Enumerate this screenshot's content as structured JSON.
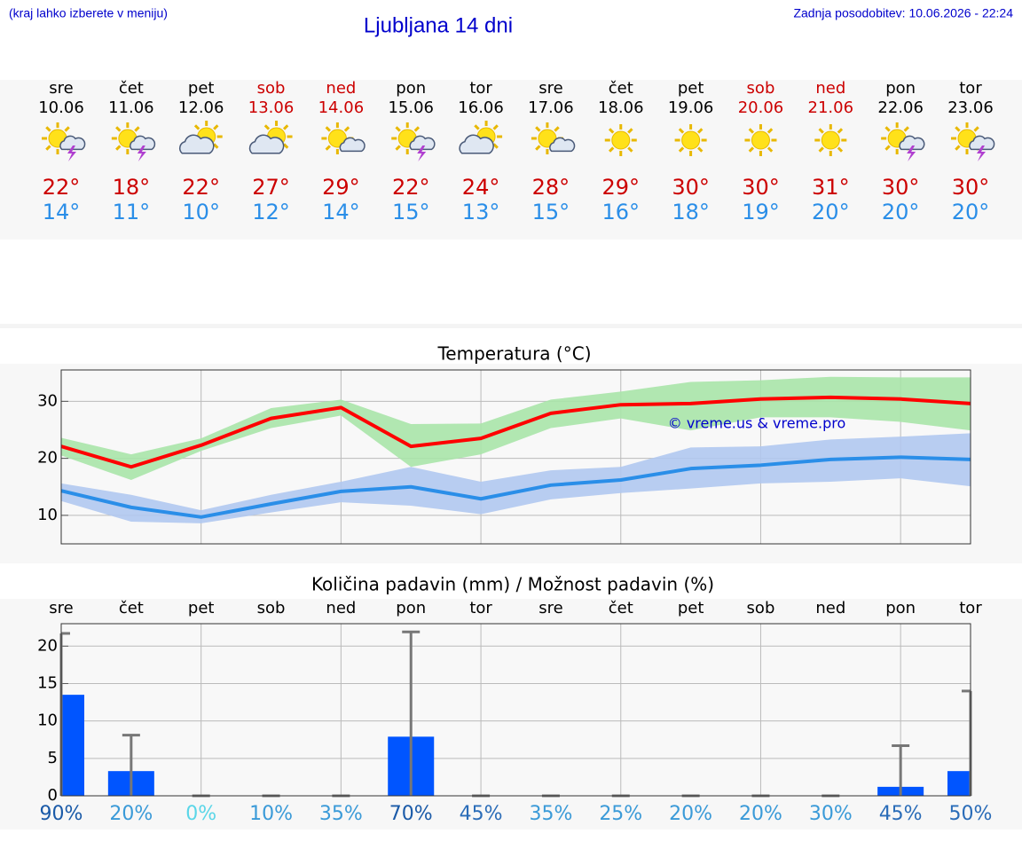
{
  "header": {
    "note": "(kraj lahko izberete v meniju)",
    "title": "Ljubljana 14 dni",
    "updated": "Zadnja posodobitev: 10.06.2026 - 22:24"
  },
  "forecast": {
    "days": [
      {
        "day": "sre",
        "date": "10.06",
        "tmax": "22°",
        "tmin": "14°"
      },
      {
        "day": "čet",
        "date": "11.06",
        "tmax": "18°",
        "tmin": "11°"
      },
      {
        "day": "pet",
        "date": "12.06",
        "tmax": "22°",
        "tmin": "10°"
      },
      {
        "day": "sob",
        "date": "13.06",
        "tmax": "27°",
        "tmin": "12°"
      },
      {
        "day": "ned",
        "date": "14.06",
        "tmax": "29°",
        "tmin": "14°"
      },
      {
        "day": "pon",
        "date": "15.06",
        "tmax": "22°",
        "tmin": "15°"
      },
      {
        "day": "tor",
        "date": "16.06",
        "tmax": "24°",
        "tmin": "13°"
      },
      {
        "day": "sre",
        "date": "17.06",
        "tmax": "28°",
        "tmin": "15°"
      },
      {
        "day": "čet",
        "date": "18.06",
        "tmax": "29°",
        "tmin": "16°"
      },
      {
        "day": "pet",
        "date": "19.06",
        "tmax": "30°",
        "tmin": "18°"
      },
      {
        "day": "sob",
        "date": "20.06",
        "tmax": "30°",
        "tmin": "19°"
      },
      {
        "day": "ned",
        "date": "21.06",
        "tmax": "31°",
        "tmin": "20°"
      },
      {
        "day": "pon",
        "date": "22.06",
        "tmax": "30°",
        "tmin": "20°"
      },
      {
        "day": "tor",
        "date": "23.06",
        "tmax": "30°",
        "tmin": "20°"
      }
    ]
  },
  "chart_data": [
    {
      "type": "line",
      "title": "Temperatura (°C)",
      "ylim": [
        5,
        35.5
      ],
      "yticks": [
        10,
        20,
        30
      ],
      "grid": true,
      "annotation": "© vreme.us & vreme.pro",
      "series": [
        {
          "color": "#ff0000",
          "values": [
            22.1,
            18.5,
            22.3,
            27,
            28.9,
            22.1,
            23.5,
            27.9,
            29.4,
            29.6,
            30.4,
            30.7,
            30.4,
            29.6
          ],
          "band_color": "#a8e4a8",
          "high": [
            23.6,
            20.7,
            23.5,
            28.8,
            30.3,
            26,
            26.1,
            30.3,
            31.7,
            33.4,
            33.7,
            34.3,
            34.2,
            34.2
          ],
          "low": [
            20.5,
            16.2,
            21.3,
            25.3,
            27.5,
            18.5,
            20.7,
            25.3,
            27,
            24.9,
            27.2,
            27.2,
            26.4,
            24.9
          ]
        },
        {
          "color": "#2a8ee8",
          "values": [
            14.3,
            11.4,
            9.7,
            12,
            14.2,
            15,
            12.9,
            15.3,
            16.2,
            18.2,
            18.8,
            19.8,
            20.2,
            19.8
          ],
          "band_color": "#b0c8f0",
          "high": [
            15.6,
            13.6,
            10.9,
            13.6,
            15.9,
            18.5,
            15.9,
            17.9,
            18.5,
            21.9,
            22.1,
            23.3,
            23.8,
            24.4
          ],
          "low": [
            12.5,
            8.9,
            8.6,
            10.5,
            12.3,
            11.7,
            10.2,
            12.8,
            13.9,
            14.7,
            15.6,
            15.9,
            16.5,
            15.1
          ]
        }
      ]
    },
    {
      "type": "bar",
      "title": "Količina padavin (mm) / Možnost padavin (%)",
      "categories": [
        "sre",
        "čet",
        "pet",
        "sob",
        "ned",
        "pon",
        "tor",
        "sre",
        "čet",
        "pet",
        "sob",
        "ned",
        "pon",
        "tor"
      ],
      "ylim": [
        0,
        23
      ],
      "yticks": [
        0,
        5,
        10,
        15,
        20
      ],
      "grid": true,
      "color": "#0055ff",
      "values": [
        13.5,
        3.3,
        0,
        0,
        0,
        7.9,
        0,
        0,
        0,
        0,
        0,
        0,
        1.2,
        3.3
      ],
      "upper": [
        21.7,
        8.1,
        0,
        0,
        0,
        21.9,
        0,
        0,
        0,
        0,
        0,
        0,
        6.7,
        14
      ],
      "probability_labels": [
        "90%",
        "20%",
        "0%",
        "10%",
        "35%",
        "70%",
        "45%",
        "35%",
        "25%",
        "20%",
        "20%",
        "30%",
        "45%",
        "50%"
      ]
    }
  ]
}
